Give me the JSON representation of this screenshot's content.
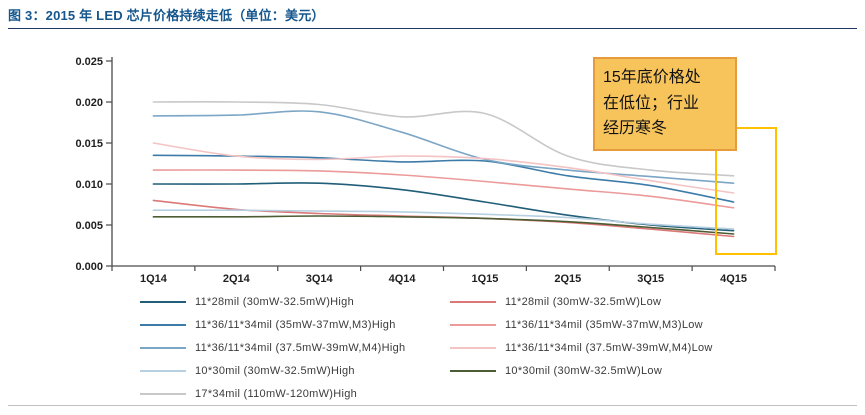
{
  "page": {
    "title": "图 3：2015 年 LED 芯片价格持续走低（单位：美元）"
  },
  "chart_data": {
    "type": "line",
    "title": "2015 年 LED 芯片价格持续走低",
    "unit": "美元",
    "categories": [
      "1Q14",
      "2Q14",
      "3Q14",
      "4Q14",
      "1Q15",
      "2Q15",
      "3Q15",
      "4Q15"
    ],
    "xlabel": "",
    "ylabel": "",
    "ylim": [
      0,
      0.025
    ],
    "ytick_labels": [
      "0.000",
      "0.005",
      "0.010",
      "0.015",
      "0.020",
      "0.025"
    ],
    "grid": false,
    "legend_position": "bottom-two-columns",
    "series": [
      {
        "name": "11*28mil (30mW-32.5mW)High",
        "color": "#215E78",
        "values": [
          0.01,
          0.01,
          0.0101,
          0.0093,
          0.0078,
          0.0062,
          0.005,
          0.0043
        ]
      },
      {
        "name": "11*28mil (30mW-32.5mW)Low",
        "color": "#DB7878",
        "values": [
          0.008,
          0.0069,
          0.0064,
          0.0061,
          0.0058,
          0.0053,
          0.0045,
          0.0036
        ]
      },
      {
        "name": "11*36/11*34mil (35mW-37mW,M3)High",
        "color": "#3D7CA8",
        "values": [
          0.0135,
          0.0134,
          0.0132,
          0.0127,
          0.0128,
          0.011,
          0.0098,
          0.0078
        ]
      },
      {
        "name": "11*36/11*34mil (35mW-37mW,M3)Low",
        "color": "#EC9A9A",
        "values": [
          0.0117,
          0.0117,
          0.0116,
          0.0111,
          0.0103,
          0.0094,
          0.0085,
          0.0071
        ]
      },
      {
        "name": "11*36/11*34mil (37.5mW-39mW,M4)High",
        "color": "#7CA6C6",
        "values": [
          0.0183,
          0.0184,
          0.0188,
          0.0163,
          0.013,
          0.0117,
          0.0109,
          0.0101
        ]
      },
      {
        "name": "11*36/11*34mil (37.5mW-39mW,M4)Low",
        "color": "#F4C3C3",
        "values": [
          0.015,
          0.0134,
          0.013,
          0.0134,
          0.0131,
          0.012,
          0.0104,
          0.0089
        ]
      },
      {
        "name": "10*30mil (30mW-32.5mW)High",
        "color": "#B7D0E1",
        "values": [
          0.0068,
          0.0068,
          0.0067,
          0.0066,
          0.0063,
          0.0059,
          0.0051,
          0.0045
        ]
      },
      {
        "name": "10*30mil (30mW-32.5mW)Low",
        "color": "#4C5C33",
        "values": [
          0.006,
          0.006,
          0.0061,
          0.006,
          0.0058,
          0.0054,
          0.0047,
          0.0039
        ]
      },
      {
        "name": "17*34mil (110mW-120mW)High",
        "color": "#C8C8C8",
        "values": [
          0.02,
          0.02,
          0.0197,
          0.0182,
          0.0186,
          0.0134,
          0.0117,
          0.011
        ]
      }
    ],
    "legend_columns": [
      [
        0,
        2,
        4,
        6,
        8
      ],
      [
        1,
        3,
        5,
        7
      ]
    ],
    "annotation": {
      "text": "15年底价格处\n在低位；行业\n经历寒冬",
      "fill": "#F7C45C",
      "border": "#E89B3C"
    },
    "highlight_box": {
      "color": "#FFC000"
    }
  }
}
